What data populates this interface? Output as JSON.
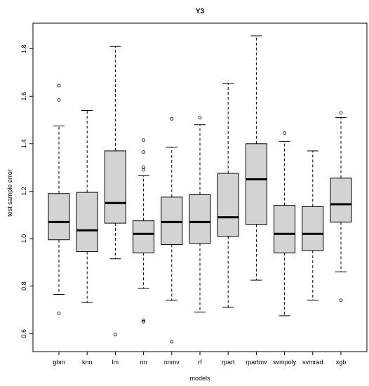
{
  "chart_data": {
    "type": "boxplot",
    "title": "Y3",
    "xlabel": "models",
    "ylabel": "test sample error",
    "ylim": [
      0.52,
      1.9
    ],
    "yticks": [
      0.6,
      0.8,
      1.0,
      1.2,
      1.4,
      1.6,
      1.8
    ],
    "ytick_labels": [
      "0.6",
      "0.8",
      "1.0",
      "1.2",
      "1.4",
      "1.6",
      "1.8"
    ],
    "box_fill": "#d3d3d3",
    "grid": false,
    "categories": [
      "gbm",
      "knn",
      "lm",
      "nn",
      "nnmv",
      "rf",
      "rpart",
      "rpartmv",
      "svmpoly",
      "svmrad",
      "xgb"
    ],
    "boxes": [
      {
        "name": "gbm",
        "whisker_low": 0.765,
        "q1": 0.995,
        "median": 1.07,
        "q3": 1.19,
        "whisker_high": 1.475,
        "outliers": [
          0.685,
          1.585,
          1.645
        ]
      },
      {
        "name": "knn",
        "whisker_low": 0.73,
        "q1": 0.945,
        "median": 1.035,
        "q3": 1.195,
        "whisker_high": 1.54,
        "outliers": []
      },
      {
        "name": "lm",
        "whisker_low": 0.915,
        "q1": 1.065,
        "median": 1.15,
        "q3": 1.37,
        "whisker_high": 1.81,
        "outliers": [
          0.595
        ]
      },
      {
        "name": "nn",
        "whisker_low": 0.79,
        "q1": 0.94,
        "median": 1.02,
        "q3": 1.075,
        "whisker_high": 1.265,
        "outliers": [
          0.65,
          0.655,
          1.29,
          1.3,
          1.365,
          1.415
        ]
      },
      {
        "name": "nnmv",
        "whisker_low": 0.74,
        "q1": 0.975,
        "median": 1.07,
        "q3": 1.175,
        "whisker_high": 1.385,
        "outliers": [
          0.565,
          1.505
        ]
      },
      {
        "name": "rf",
        "whisker_low": 0.69,
        "q1": 0.98,
        "median": 1.07,
        "q3": 1.185,
        "whisker_high": 1.48,
        "outliers": [
          1.51
        ]
      },
      {
        "name": "rpart",
        "whisker_low": 0.71,
        "q1": 1.01,
        "median": 1.09,
        "q3": 1.275,
        "whisker_high": 1.655,
        "outliers": []
      },
      {
        "name": "rpartmv",
        "whisker_low": 0.825,
        "q1": 1.06,
        "median": 1.25,
        "q3": 1.4,
        "whisker_high": 1.855,
        "outliers": []
      },
      {
        "name": "svmpoly",
        "whisker_low": 0.675,
        "q1": 0.94,
        "median": 1.02,
        "q3": 1.14,
        "whisker_high": 1.41,
        "outliers": [
          1.445
        ]
      },
      {
        "name": "svmrad",
        "whisker_low": 0.74,
        "q1": 0.95,
        "median": 1.02,
        "q3": 1.135,
        "whisker_high": 1.37,
        "outliers": []
      },
      {
        "name": "xgb",
        "whisker_low": 0.86,
        "q1": 1.07,
        "median": 1.145,
        "q3": 1.255,
        "whisker_high": 1.51,
        "outliers": [
          0.74,
          1.53
        ]
      }
    ]
  }
}
